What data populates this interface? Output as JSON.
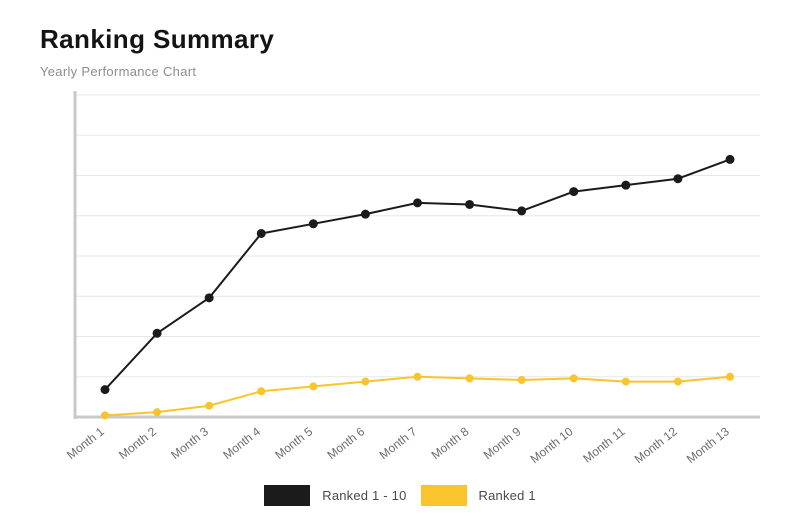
{
  "page": {
    "title": "Ranking Summary",
    "subtitle": "Yearly Performance Chart"
  },
  "chart_data": {
    "type": "line",
    "categories": [
      "Month 1",
      "Month 2",
      "Month 3",
      "Month 4",
      "Month 5",
      "Month 6",
      "Month 7",
      "Month 8",
      "Month 9",
      "Month 10",
      "Month 11",
      "Month 12",
      "Month 13"
    ],
    "series": [
      {
        "name": "Ranked 1 - 10",
        "color": "#1b1b1b",
        "values": [
          8.5,
          26,
          37,
          57,
          60,
          63,
          66.5,
          66,
          64,
          70,
          72,
          74,
          80
        ]
      },
      {
        "name": "Ranked 1",
        "color": "#f9c42c",
        "values": [
          0.5,
          1.5,
          3.5,
          8,
          9.5,
          11,
          12.5,
          12,
          11.5,
          12,
          11,
          11,
          12.5
        ]
      }
    ],
    "title": "Ranking Summary",
    "xlabel": "",
    "ylabel": "",
    "ylim": [
      0,
      100
    ],
    "grid": true,
    "gridline_intervals": 8,
    "legend_position": "bottom",
    "axis_color": "#c9c9c9",
    "grid_color": "#e7e7e7",
    "label_color": "#6b6b6b"
  },
  "legend": {
    "items": [
      {
        "label": "Ranked 1 - 10",
        "color": "#1b1b1b"
      },
      {
        "label": "Ranked 1",
        "color": "#f9c42c"
      }
    ]
  }
}
